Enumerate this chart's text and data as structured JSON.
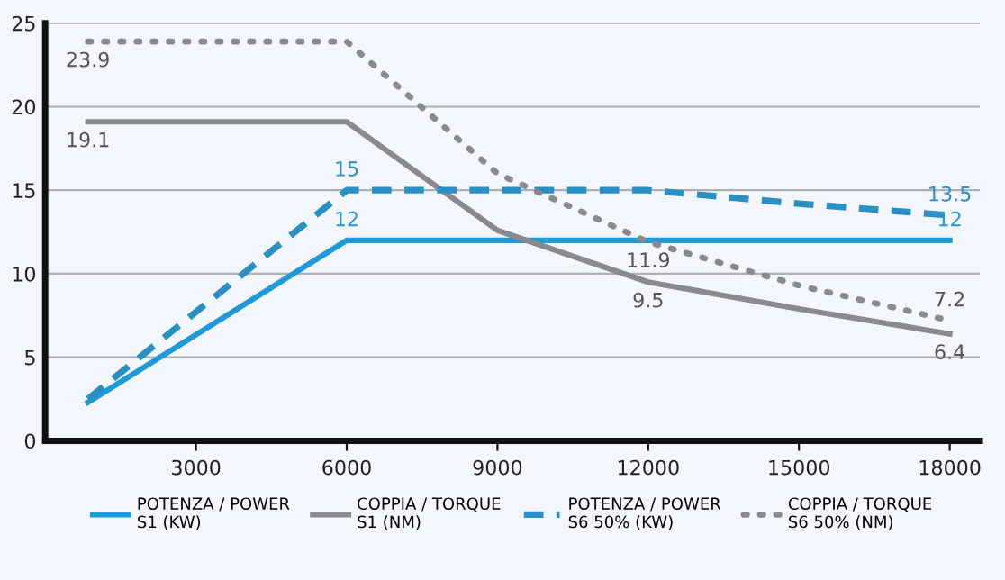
{
  "chart_data": {
    "type": "line",
    "x": [
      850,
      6000,
      9000,
      12000,
      15000,
      18000
    ],
    "series": [
      {
        "name": "POTENZA / POWER\nS1 (KW)",
        "color": "#1e9ad6",
        "line_style": "solid",
        "values": [
          2.3,
          12,
          12,
          12,
          12,
          12
        ],
        "value_labels": [
          null,
          "12",
          null,
          null,
          null,
          "12"
        ]
      },
      {
        "name": "COPPIA / TORQUE\nS1 (NM)",
        "color": "#8a8a8e",
        "line_style": "solid",
        "values": [
          19.1,
          19.1,
          12.6,
          9.5,
          7.9,
          6.4
        ],
        "value_labels": [
          "19.1",
          null,
          null,
          "9.5",
          null,
          "6.4"
        ]
      },
      {
        "name": "POTENZA / POWER\nS6 50% (KW)",
        "color": "#2a8fc4",
        "line_style": "dashed",
        "values": [
          2.5,
          15,
          15,
          15,
          14.2,
          13.5
        ],
        "value_labels": [
          null,
          "15",
          null,
          null,
          null,
          "13.5"
        ]
      },
      {
        "name": "COPPIA / TORQUE\nS6 50% (NM)",
        "color": "#8a8a8e",
        "line_style": "dotted",
        "values": [
          23.9,
          23.9,
          16,
          11.9,
          9.3,
          7.2
        ],
        "value_labels": [
          "23.9",
          null,
          null,
          "11.9",
          null,
          "7.2"
        ]
      }
    ],
    "xlim": [
      0,
      18600
    ],
    "xticks": [
      3000,
      6000,
      9000,
      12000,
      15000,
      18000
    ],
    "ylim": [
      0,
      25
    ],
    "yticks": [
      0,
      5,
      10,
      15,
      20,
      25
    ],
    "grid": "y",
    "legend": "bottom",
    "marker": "none"
  }
}
